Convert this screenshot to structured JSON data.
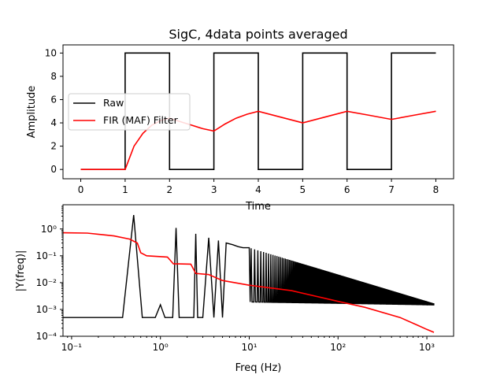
{
  "chart_data": [
    {
      "type": "line",
      "title": "SigC, 4data points averaged",
      "xlabel": "Time",
      "ylabel": "Amplitude",
      "xlim": [
        -0.4,
        8.4
      ],
      "ylim": [
        -0.8,
        10.7
      ],
      "xticks": [
        "0",
        "1",
        "2",
        "3",
        "4",
        "5",
        "6",
        "7",
        "8"
      ],
      "yticks": [
        "0",
        "2",
        "4",
        "6",
        "8",
        "10"
      ],
      "legend": {
        "placement": "center-left",
        "entries": [
          "Raw",
          "FIR (MAF) Filter"
        ]
      },
      "series": [
        {
          "name": "Raw",
          "color": "#000000",
          "x": [
            0,
            1,
            1,
            2,
            2,
            3,
            3,
            4,
            4,
            5,
            5,
            6,
            6,
            7,
            7,
            8
          ],
          "y": [
            0,
            0,
            10,
            10,
            0,
            0,
            10,
            10,
            0,
            0,
            10,
            10,
            0,
            0,
            10,
            10
          ]
        },
        {
          "name": "FIR (MAF) Filter",
          "color": "#ff0000",
          "x": [
            0,
            1,
            1.2,
            1.4,
            1.6,
            1.8,
            2,
            2.25,
            2.5,
            2.75,
            3,
            3.25,
            3.5,
            3.75,
            4,
            4.5,
            5,
            5.5,
            6,
            6.5,
            7,
            7.5,
            8
          ],
          "y": [
            0,
            0,
            2.0,
            3.1,
            3.8,
            4.2,
            4.4,
            4.1,
            3.8,
            3.5,
            3.3,
            3.9,
            4.4,
            4.75,
            5.0,
            4.5,
            4.0,
            4.5,
            5.0,
            4.65,
            4.3,
            4.65,
            5.0
          ]
        }
      ]
    },
    {
      "type": "line",
      "title": "",
      "xlabel": "Freq (Hz)",
      "ylabel": "|Y(freq)|",
      "xscale": "log",
      "yscale": "log",
      "xlim": [
        0.08,
        2000
      ],
      "ylim": [
        0.0001,
        8
      ],
      "xticks": [
        {
          "value": 0.1,
          "label": "10⁻¹"
        },
        {
          "value": 1,
          "label": "10⁰"
        },
        {
          "value": 10,
          "label": "10¹"
        },
        {
          "value": 100,
          "label": "10²"
        },
        {
          "value": 1000,
          "label": "10³"
        }
      ],
      "yticks": [
        {
          "value": 0.0001,
          "label": "10⁻⁴"
        },
        {
          "value": 0.001,
          "label": "10⁻³"
        },
        {
          "value": 0.01,
          "label": "10⁻²"
        },
        {
          "value": 0.1,
          "label": "10⁻¹"
        },
        {
          "value": 1,
          "label": "10⁰"
        }
      ],
      "series": [
        {
          "color": "#000000",
          "description": "spectrum of raw square wave: floor ~0.0005, odd harmonics peaks from 3.3 at 0.5 Hz decaying as 1/f, dense oscillation above 10 Hz",
          "x": [
            0.08,
            0.375,
            0.5,
            0.625,
            0.875,
            1.0,
            1.125,
            1.25,
            1.375,
            1.5,
            1.625,
            2.125,
            2.25,
            2.375,
            2.5,
            2.625,
            3.0,
            3.5,
            4.0,
            4.5,
            5.0,
            5.5,
            6.5,
            7.5,
            8.5,
            10,
            1200
          ],
          "y": [
            0.0005,
            0.0005,
            3.3,
            0.0005,
            0.0005,
            0.0015,
            0.0005,
            0.0005,
            0.0005,
            1.1,
            0.0005,
            0.0005,
            0.0005,
            0.0005,
            0.66,
            0.0005,
            0.0005,
            0.47,
            0.0005,
            0.37,
            0.0005,
            0.3,
            0.26,
            0.22,
            0.2,
            0.2,
            0.0015
          ]
        },
        {
          "color": "#ff0000",
          "description": "spectrum of filtered signal",
          "x": [
            0.08,
            0.15,
            0.3,
            0.45,
            0.55,
            0.6,
            0.7,
            1.2,
            1.4,
            1.6,
            2.2,
            2.5,
            3.5,
            5,
            10,
            30,
            100,
            200,
            500,
            800,
            1000,
            1200
          ],
          "y": [
            0.72,
            0.7,
            0.55,
            0.42,
            0.3,
            0.13,
            0.1,
            0.09,
            0.05,
            0.05,
            0.049,
            0.022,
            0.02,
            0.012,
            0.008,
            0.005,
            0.002,
            0.0012,
            0.0005,
            0.00025,
            0.00018,
            0.00014
          ]
        }
      ]
    }
  ]
}
